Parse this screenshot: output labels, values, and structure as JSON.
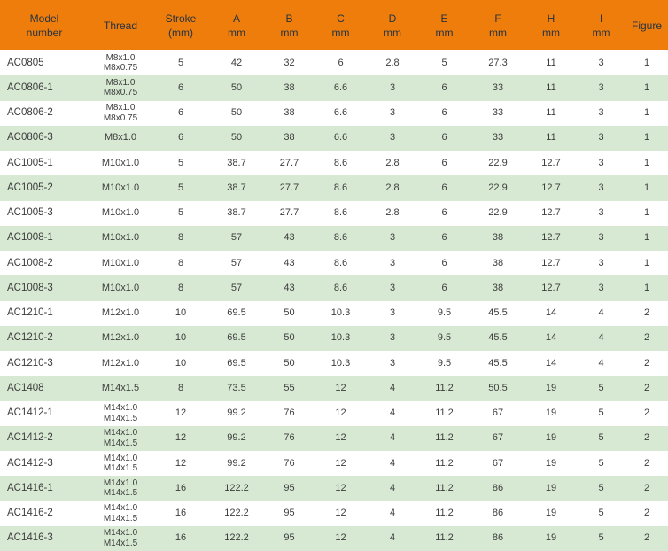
{
  "style": {
    "header_bg": "#ee7d0c",
    "header_text": "#263340",
    "row_alt_bg": "#d7e9d3",
    "row_bg": "#ffffff",
    "body_text": "#3c3c3c"
  },
  "chart_data": {
    "type": "table",
    "title": "",
    "columns": [
      {
        "id": "model",
        "lines": [
          "Model",
          "number"
        ]
      },
      {
        "id": "thread",
        "lines": [
          "Thread"
        ]
      },
      {
        "id": "stroke",
        "lines": [
          "Stroke",
          "(mm)"
        ]
      },
      {
        "id": "A",
        "lines": [
          "A",
          "mm"
        ]
      },
      {
        "id": "B",
        "lines": [
          "B",
          "mm"
        ]
      },
      {
        "id": "C",
        "lines": [
          "C",
          "mm"
        ]
      },
      {
        "id": "D",
        "lines": [
          "D",
          "mm"
        ]
      },
      {
        "id": "E",
        "lines": [
          "E",
          "mm"
        ]
      },
      {
        "id": "F",
        "lines": [
          "F",
          "mm"
        ]
      },
      {
        "id": "H",
        "lines": [
          "H",
          "mm"
        ]
      },
      {
        "id": "I",
        "lines": [
          "I",
          "mm"
        ]
      },
      {
        "id": "figure",
        "lines": [
          "Figure"
        ]
      }
    ],
    "rows": [
      {
        "model": "AC0805",
        "thread": [
          "M8x1.0",
          "M8x0.75"
        ],
        "stroke": "5",
        "A": "42",
        "B": "32",
        "C": "6",
        "D": "2.8",
        "E": "5",
        "F": "27.3",
        "H": "11",
        "I": "3",
        "figure": "1"
      },
      {
        "model": "AC0806-1",
        "thread": [
          "M8x1.0",
          "M8x0.75"
        ],
        "stroke": "6",
        "A": "50",
        "B": "38",
        "C": "6.6",
        "D": "3",
        "E": "6",
        "F": "33",
        "H": "11",
        "I": "3",
        "figure": "1"
      },
      {
        "model": "AC0806-2",
        "thread": [
          "M8x1.0",
          "M8x0.75"
        ],
        "stroke": "6",
        "A": "50",
        "B": "38",
        "C": "6.6",
        "D": "3",
        "E": "6",
        "F": "33",
        "H": "11",
        "I": "3",
        "figure": "1"
      },
      {
        "model": "AC0806-3",
        "thread": [
          "M8x1.0"
        ],
        "stroke": "6",
        "A": "50",
        "B": "38",
        "C": "6.6",
        "D": "3",
        "E": "6",
        "F": "33",
        "H": "11",
        "I": "3",
        "figure": "1"
      },
      {
        "model": "AC1005-1",
        "thread": [
          "M10x1.0"
        ],
        "stroke": "5",
        "A": "38.7",
        "B": "27.7",
        "C": "8.6",
        "D": "2.8",
        "E": "6",
        "F": "22.9",
        "H": "12.7",
        "I": "3",
        "figure": "1"
      },
      {
        "model": "AC1005-2",
        "thread": [
          "M10x1.0"
        ],
        "stroke": "5",
        "A": "38.7",
        "B": "27.7",
        "C": "8.6",
        "D": "2.8",
        "E": "6",
        "F": "22.9",
        "H": "12.7",
        "I": "3",
        "figure": "1"
      },
      {
        "model": "AC1005-3",
        "thread": [
          "M10x1.0"
        ],
        "stroke": "5",
        "A": "38.7",
        "B": "27.7",
        "C": "8.6",
        "D": "2.8",
        "E": "6",
        "F": "22.9",
        "H": "12.7",
        "I": "3",
        "figure": "1"
      },
      {
        "model": "AC1008-1",
        "thread": [
          "M10x1.0"
        ],
        "stroke": "8",
        "A": "57",
        "B": "43",
        "C": "8.6",
        "D": "3",
        "E": "6",
        "F": "38",
        "H": "12.7",
        "I": "3",
        "figure": "1"
      },
      {
        "model": "AC1008-2",
        "thread": [
          "M10x1.0"
        ],
        "stroke": "8",
        "A": "57",
        "B": "43",
        "C": "8.6",
        "D": "3",
        "E": "6",
        "F": "38",
        "H": "12.7",
        "I": "3",
        "figure": "1"
      },
      {
        "model": "AC1008-3",
        "thread": [
          "M10x1.0"
        ],
        "stroke": "8",
        "A": "57",
        "B": "43",
        "C": "8.6",
        "D": "3",
        "E": "6",
        "F": "38",
        "H": "12.7",
        "I": "3",
        "figure": "1"
      },
      {
        "model": "AC1210-1",
        "thread": [
          "M12x1.0"
        ],
        "stroke": "10",
        "A": "69.5",
        "B": "50",
        "C": "10.3",
        "D": "3",
        "E": "9.5",
        "F": "45.5",
        "H": "14",
        "I": "4",
        "figure": "2"
      },
      {
        "model": "AC1210-2",
        "thread": [
          "M12x1.0"
        ],
        "stroke": "10",
        "A": "69.5",
        "B": "50",
        "C": "10.3",
        "D": "3",
        "E": "9.5",
        "F": "45.5",
        "H": "14",
        "I": "4",
        "figure": "2"
      },
      {
        "model": "AC1210-3",
        "thread": [
          "M12x1.0"
        ],
        "stroke": "10",
        "A": "69.5",
        "B": "50",
        "C": "10.3",
        "D": "3",
        "E": "9.5",
        "F": "45.5",
        "H": "14",
        "I": "4",
        "figure": "2"
      },
      {
        "model": "AC1408",
        "thread": [
          "M14x1.5"
        ],
        "stroke": "8",
        "A": "73.5",
        "B": "55",
        "C": "12",
        "D": "4",
        "E": "11.2",
        "F": "50.5",
        "H": "19",
        "I": "5",
        "figure": "2"
      },
      {
        "model": "AC1412-1",
        "thread": [
          "M14x1.0",
          "M14x1.5"
        ],
        "stroke": "12",
        "A": "99.2",
        "B": "76",
        "C": "12",
        "D": "4",
        "E": "11.2",
        "F": "67",
        "H": "19",
        "I": "5",
        "figure": "2"
      },
      {
        "model": "AC1412-2",
        "thread": [
          "M14x1.0",
          "M14x1.5"
        ],
        "stroke": "12",
        "A": "99.2",
        "B": "76",
        "C": "12",
        "D": "4",
        "E": "11.2",
        "F": "67",
        "H": "19",
        "I": "5",
        "figure": "2"
      },
      {
        "model": "AC1412-3",
        "thread": [
          "M14x1.0",
          "M14x1.5"
        ],
        "stroke": "12",
        "A": "99.2",
        "B": "76",
        "C": "12",
        "D": "4",
        "E": "11.2",
        "F": "67",
        "H": "19",
        "I": "5",
        "figure": "2"
      },
      {
        "model": "AC1416-1",
        "thread": [
          "M14x1.0",
          "M14x1.5"
        ],
        "stroke": "16",
        "A": "122.2",
        "B": "95",
        "C": "12",
        "D": "4",
        "E": "11.2",
        "F": "86",
        "H": "19",
        "I": "5",
        "figure": "2"
      },
      {
        "model": "AC1416-2",
        "thread": [
          "M14x1.0",
          "M14x1.5"
        ],
        "stroke": "16",
        "A": "122.2",
        "B": "95",
        "C": "12",
        "D": "4",
        "E": "11.2",
        "F": "86",
        "H": "19",
        "I": "5",
        "figure": "2"
      },
      {
        "model": "AC1416-3",
        "thread": [
          "M14x1.0",
          "M14x1.5"
        ],
        "stroke": "16",
        "A": "122.2",
        "B": "95",
        "C": "12",
        "D": "4",
        "E": "11.2",
        "F": "86",
        "H": "19",
        "I": "5",
        "figure": "2"
      }
    ]
  }
}
